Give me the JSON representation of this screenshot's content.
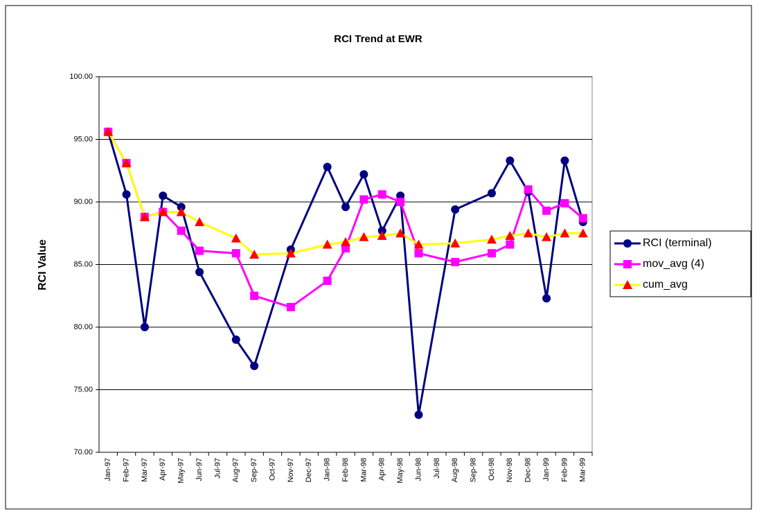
{
  "chart_data": {
    "type": "line",
    "title": "RCI Trend at EWR",
    "y_label": "RCI Value",
    "x": [
      "1997-01",
      "1997-02",
      "1997-03",
      "1997-04",
      "1997-05",
      "1997-06",
      "1997-08",
      "1997-09",
      "1997-11",
      "1998-01",
      "1998-02",
      "1998-03",
      "1998-04",
      "1998-05",
      "1998-06",
      "1998-08",
      "1998-10",
      "1998-11",
      "1998-12",
      "1999-01",
      "1999-02",
      "1999-03"
    ],
    "xlim": [
      "1997-01",
      "1999-03"
    ],
    "xticks": [
      {
        "value": "1997-01",
        "label": "Jan-97"
      },
      {
        "value": "1997-02",
        "label": "Feb-97"
      },
      {
        "value": "1997-03",
        "label": "Mar-97"
      },
      {
        "value": "1997-04",
        "label": "Apr-97"
      },
      {
        "value": "1997-05",
        "label": "May-97"
      },
      {
        "value": "1997-06",
        "label": "Jun-97"
      },
      {
        "value": "1997-07",
        "label": "Jul-97"
      },
      {
        "value": "1997-08",
        "label": "Aug-97"
      },
      {
        "value": "1997-09",
        "label": "Sep-97"
      },
      {
        "value": "1997-10",
        "label": "Oct-97"
      },
      {
        "value": "1997-11",
        "label": "Nov-97"
      },
      {
        "value": "1997-12",
        "label": "Dec-97"
      },
      {
        "value": "1998-01",
        "label": "Jan-98"
      },
      {
        "value": "1998-02",
        "label": "Feb-98"
      },
      {
        "value": "1998-03",
        "label": "Mar-98"
      },
      {
        "value": "1998-04",
        "label": "Apr-98"
      },
      {
        "value": "1998-05",
        "label": "May-98"
      },
      {
        "value": "1998-06",
        "label": "Jun-98"
      },
      {
        "value": "1998-07",
        "label": "Jul-98"
      },
      {
        "value": "1998-08",
        "label": "Aug-98"
      },
      {
        "value": "1998-09",
        "label": "Sep-98"
      },
      {
        "value": "1998-10",
        "label": "Oct-98"
      },
      {
        "value": "1998-11",
        "label": "Nov-98"
      },
      {
        "value": "1998-12",
        "label": "Dec-98"
      },
      {
        "value": "1999-01",
        "label": "Jan-99"
      },
      {
        "value": "1999-02",
        "label": "Feb-99"
      },
      {
        "value": "1999-03",
        "label": "Mar-99"
      }
    ],
    "ylim": [
      70,
      100
    ],
    "yticks": [
      {
        "value": 70,
        "label": "70.00"
      },
      {
        "value": 75,
        "label": "75.00"
      },
      {
        "value": 80,
        "label": "80.00"
      },
      {
        "value": 85,
        "label": "85.00"
      },
      {
        "value": 90,
        "label": "90.00"
      },
      {
        "value": 95,
        "label": "95.00"
      },
      {
        "value": 100,
        "label": "100.00"
      }
    ],
    "grid": true,
    "legend": "right",
    "series": [
      {
        "name": "RCI (terminal)",
        "color": "#000080",
        "marker": "circle",
        "marker_color": "#000080",
        "values": [
          95.6,
          90.6,
          80.0,
          90.5,
          89.6,
          84.4,
          79.0,
          76.9,
          86.2,
          92.8,
          89.6,
          92.2,
          87.7,
          90.5,
          73.0,
          89.4,
          90.7,
          93.3,
          90.8,
          82.3,
          93.3,
          88.4
        ]
      },
      {
        "name": "mov_avg (4)",
        "color": "#FF00FF",
        "marker": "square",
        "marker_color": "#FF00FF",
        "values": [
          95.6,
          93.1,
          88.8,
          89.2,
          87.7,
          86.1,
          85.9,
          82.5,
          81.6,
          83.7,
          86.3,
          90.2,
          90.6,
          90.0,
          85.9,
          85.2,
          85.9,
          86.6,
          91.0,
          89.3,
          89.9,
          88.7
        ]
      },
      {
        "name": "cum_avg",
        "color": "#FFFF00",
        "marker": "triangle",
        "marker_color": "#FF0000",
        "values": [
          95.6,
          93.1,
          88.8,
          89.2,
          89.2,
          88.4,
          87.1,
          85.8,
          85.9,
          86.6,
          86.8,
          87.2,
          87.3,
          87.5,
          86.6,
          86.7,
          87.0,
          87.3,
          87.5,
          87.2,
          87.5,
          87.5
        ]
      }
    ]
  }
}
